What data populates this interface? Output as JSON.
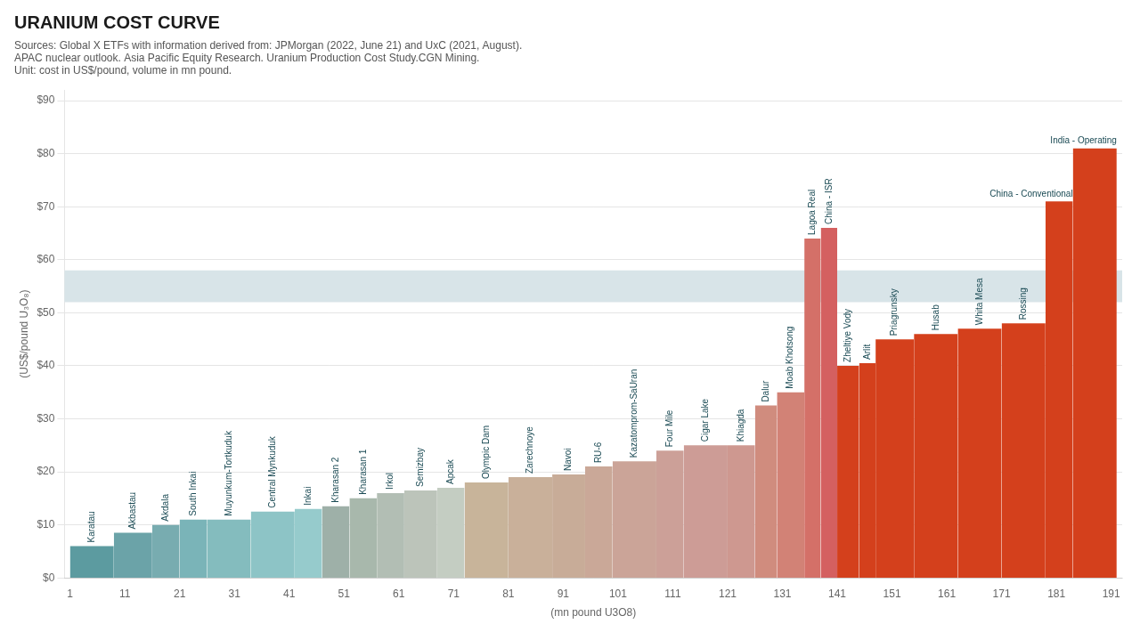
{
  "chart_data": {
    "type": "bar",
    "title": "URANIUM COST CURVE",
    "subtitle": [
      "Sources: Global X ETFs with information derived from: JPMorgan (2022, June 21) and UxC (2021, August).",
      "APAC nuclear outlook. Asia Pacific Equity Research. Uranium Production Cost Study.CGN Mining.",
      "Unit: cost in US$/pound, volume in mn pound."
    ],
    "xlabel": "(mn pound U3O8)",
    "ylabel": "(US$/pound U₃O₈)",
    "names": [
      "Karatau",
      "Akbastau",
      "Akdala",
      "South Inkai",
      "Muyunkum-Tortkuduk",
      "Central Mynkuduk",
      "Inkai",
      "Kharasan 2",
      "Kharasan 1",
      "Irkol",
      "Semizbay",
      "Apcak",
      "Olympic Dam",
      "Zarechnoye",
      "Navoi",
      "RU-6",
      "Kazatomprom-SaUran",
      "Four Mile",
      "Cigar Lake",
      "Khiagda",
      "Dalur",
      "Moab Khotsong",
      "Lagoa Real",
      "China - ISR",
      "Zheltiye Vody",
      "Arlit",
      "Priagrunskу",
      "Husab",
      "Whita Mesa",
      "Rossing",
      "China - Conventional",
      "India - Operating"
    ],
    "x": [
      1,
      9,
      16,
      21,
      26,
      34,
      42,
      47,
      52,
      57,
      62,
      68,
      73,
      81,
      89,
      95,
      100,
      108,
      113,
      121,
      126,
      130,
      135,
      138,
      141,
      145,
      148,
      155,
      163,
      171,
      179,
      184
    ],
    "widths": [
      8,
      7,
      5,
      5,
      8,
      8,
      5,
      5,
      5,
      5,
      6,
      5,
      8,
      8,
      6,
      5,
      8,
      5,
      8,
      5,
      4,
      5,
      3,
      3,
      4,
      3,
      7,
      8,
      8,
      8,
      5,
      8
    ],
    "values": [
      6,
      8.5,
      10,
      11,
      11,
      12.5,
      13,
      13.5,
      15,
      16,
      16.5,
      17,
      18,
      19,
      19.5,
      21,
      22,
      24,
      25,
      25,
      32.5,
      35,
      64,
      66,
      40,
      40.5,
      45,
      46,
      47,
      48,
      71,
      81
    ],
    "colors": [
      "#5c9ba0",
      "#6ba3a8",
      "#78acb0",
      "#7ab4b8",
      "#84bcbe",
      "#8dc4c6",
      "#96cbcc",
      "#9eb0a8",
      "#a8b8ac",
      "#b2beb4",
      "#bcc4ba",
      "#c4cdc2",
      "#c8b49a",
      "#c9b09a",
      "#c8ac98",
      "#caa898",
      "#cba498",
      "#cca098",
      "#cd9c96",
      "#ce9890",
      "#d08c7e",
      "#d28276",
      "#d47068",
      "#d46060",
      "#d4401c",
      "#d4401c",
      "#d4401c",
      "#d4401c",
      "#d4401c",
      "#d4401c",
      "#d4401c",
      "#d4401c"
    ],
    "band": [
      52,
      58
    ],
    "band_color": "#d8e4e8",
    "xlim": [
      0,
      193
    ],
    "xticks": [
      1,
      11,
      21,
      31,
      41,
      51,
      61,
      71,
      81,
      91,
      101,
      111,
      121,
      131,
      141,
      151,
      161,
      171,
      181,
      191
    ],
    "ylim": [
      0,
      92
    ],
    "yticks": [
      {
        "value": 0,
        "label": "$0"
      },
      {
        "value": 10,
        "label": "$10"
      },
      {
        "value": 20,
        "label": "$20"
      },
      {
        "value": 30,
        "label": "$30"
      },
      {
        "value": 40,
        "label": "$40"
      },
      {
        "value": 50,
        "label": "$50"
      },
      {
        "value": 60,
        "label": "$60"
      },
      {
        "value": 70,
        "label": "$70"
      },
      {
        "value": 80,
        "label": "$80"
      },
      {
        "value": 90,
        "label": "$90"
      }
    ],
    "grid": "y"
  }
}
